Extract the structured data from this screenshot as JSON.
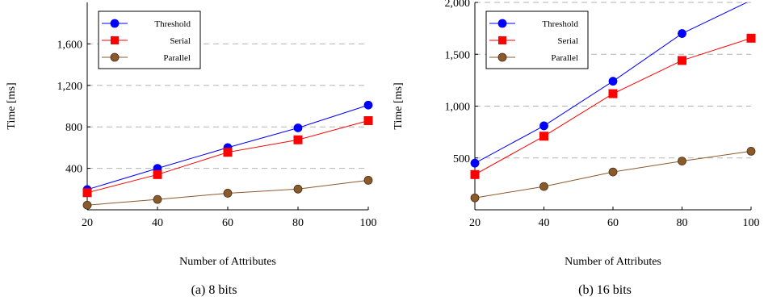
{
  "chart_data": [
    {
      "type": "line",
      "caption": "(a) 8 bits",
      "xlabel": "Number of Attributes",
      "ylabel": "Time [ms]",
      "x": [
        20,
        40,
        60,
        80,
        100
      ],
      "xticks": [
        20,
        40,
        60,
        80,
        100
      ],
      "xtick_labels": [
        "20",
        "40",
        "60",
        "80",
        "100"
      ],
      "xlim": [
        20,
        100
      ],
      "ylim": [
        0,
        2000
      ],
      "yticks": [
        400,
        800,
        1200,
        1600
      ],
      "ytick_labels": [
        "400",
        "800",
        "1,200",
        "1,600"
      ],
      "grid": "horizontal dashed",
      "legend_position": "top-left",
      "series": [
        {
          "name": "Threshold",
          "color": "#0000ff",
          "marker": "circle",
          "values": [
            195,
            400,
            600,
            790,
            1010
          ]
        },
        {
          "name": "Serial",
          "color": "#ff0000",
          "marker": "square",
          "values": [
            165,
            340,
            555,
            675,
            860
          ]
        },
        {
          "name": "Parallel",
          "color": "#8b5a2b",
          "marker": "circle",
          "values": [
            45,
            100,
            160,
            200,
            285
          ]
        }
      ]
    },
    {
      "type": "line",
      "caption": "(b) 16 bits",
      "xlabel": "Number of Attributes",
      "ylabel": "Time [ms]",
      "x": [
        20,
        40,
        60,
        80,
        100
      ],
      "xticks": [
        20,
        40,
        60,
        80,
        100
      ],
      "xtick_labels": [
        "20",
        "40",
        "60",
        "80",
        "100"
      ],
      "xlim": [
        20,
        100
      ],
      "ylim": [
        0,
        2000
      ],
      "yticks": [
        500,
        1000,
        1500,
        2000
      ],
      "ytick_labels": [
        "500",
        "1,000",
        "1,500",
        "2,000"
      ],
      "grid": "horizontal dashed",
      "legend_position": "top-left",
      "series": [
        {
          "name": "Threshold",
          "color": "#0000ff",
          "marker": "circle",
          "values": [
            450,
            810,
            1240,
            1700,
            2020
          ]
        },
        {
          "name": "Serial",
          "color": "#ff0000",
          "marker": "square",
          "values": [
            340,
            710,
            1120,
            1440,
            1655
          ]
        },
        {
          "name": "Parallel",
          "color": "#8b5a2b",
          "marker": "circle",
          "values": [
            115,
            225,
            365,
            470,
            565
          ]
        }
      ]
    }
  ]
}
